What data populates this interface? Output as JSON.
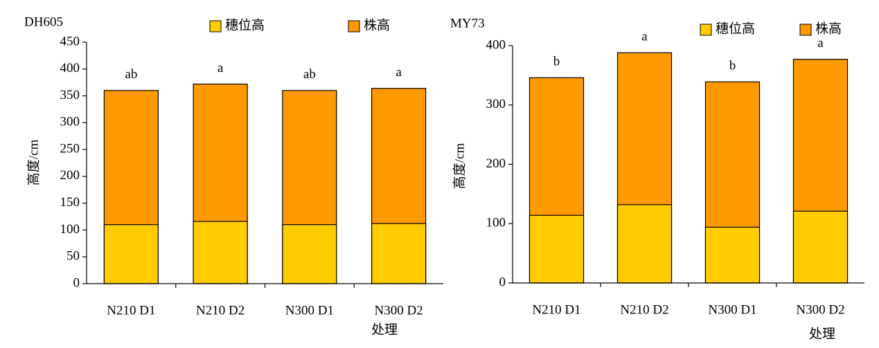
{
  "chart_data": [
    {
      "type": "bar",
      "title": "DH605",
      "ylabel": "高度/cm",
      "xlabel": "处理",
      "categories": [
        "N210 D1",
        "N210 D2",
        "N300 D1",
        "N300 D2"
      ],
      "series": [
        {
          "name": "株高",
          "color": "#FF9900",
          "values": [
            360,
            372,
            360,
            364
          ]
        },
        {
          "name": "穗位高",
          "color": "#FFCC00",
          "values": [
            110,
            116,
            110,
            112
          ]
        }
      ],
      "annotations": [
        "ab",
        "a",
        "ab",
        "a"
      ],
      "ylim": [
        0,
        450
      ],
      "yticks": [
        0,
        50,
        100,
        150,
        200,
        250,
        300,
        350,
        400,
        450
      ]
    },
    {
      "type": "bar",
      "title": "MY73",
      "ylabel": "高度/cm",
      "xlabel": "处理",
      "categories": [
        "N210 D1",
        "N210 D2",
        "N300 D1",
        "N300 D2"
      ],
      "series": [
        {
          "name": "株高",
          "color": "#FF9900",
          "values": [
            346,
            388,
            339,
            377
          ]
        },
        {
          "name": "穗位高",
          "color": "#FFCC00",
          "values": [
            114,
            132,
            94,
            121
          ]
        }
      ],
      "annotations": [
        "b",
        "a",
        "b",
        "a"
      ],
      "ylim": [
        0,
        400
      ],
      "yticks": [
        0,
        100,
        200,
        300,
        400
      ]
    }
  ]
}
